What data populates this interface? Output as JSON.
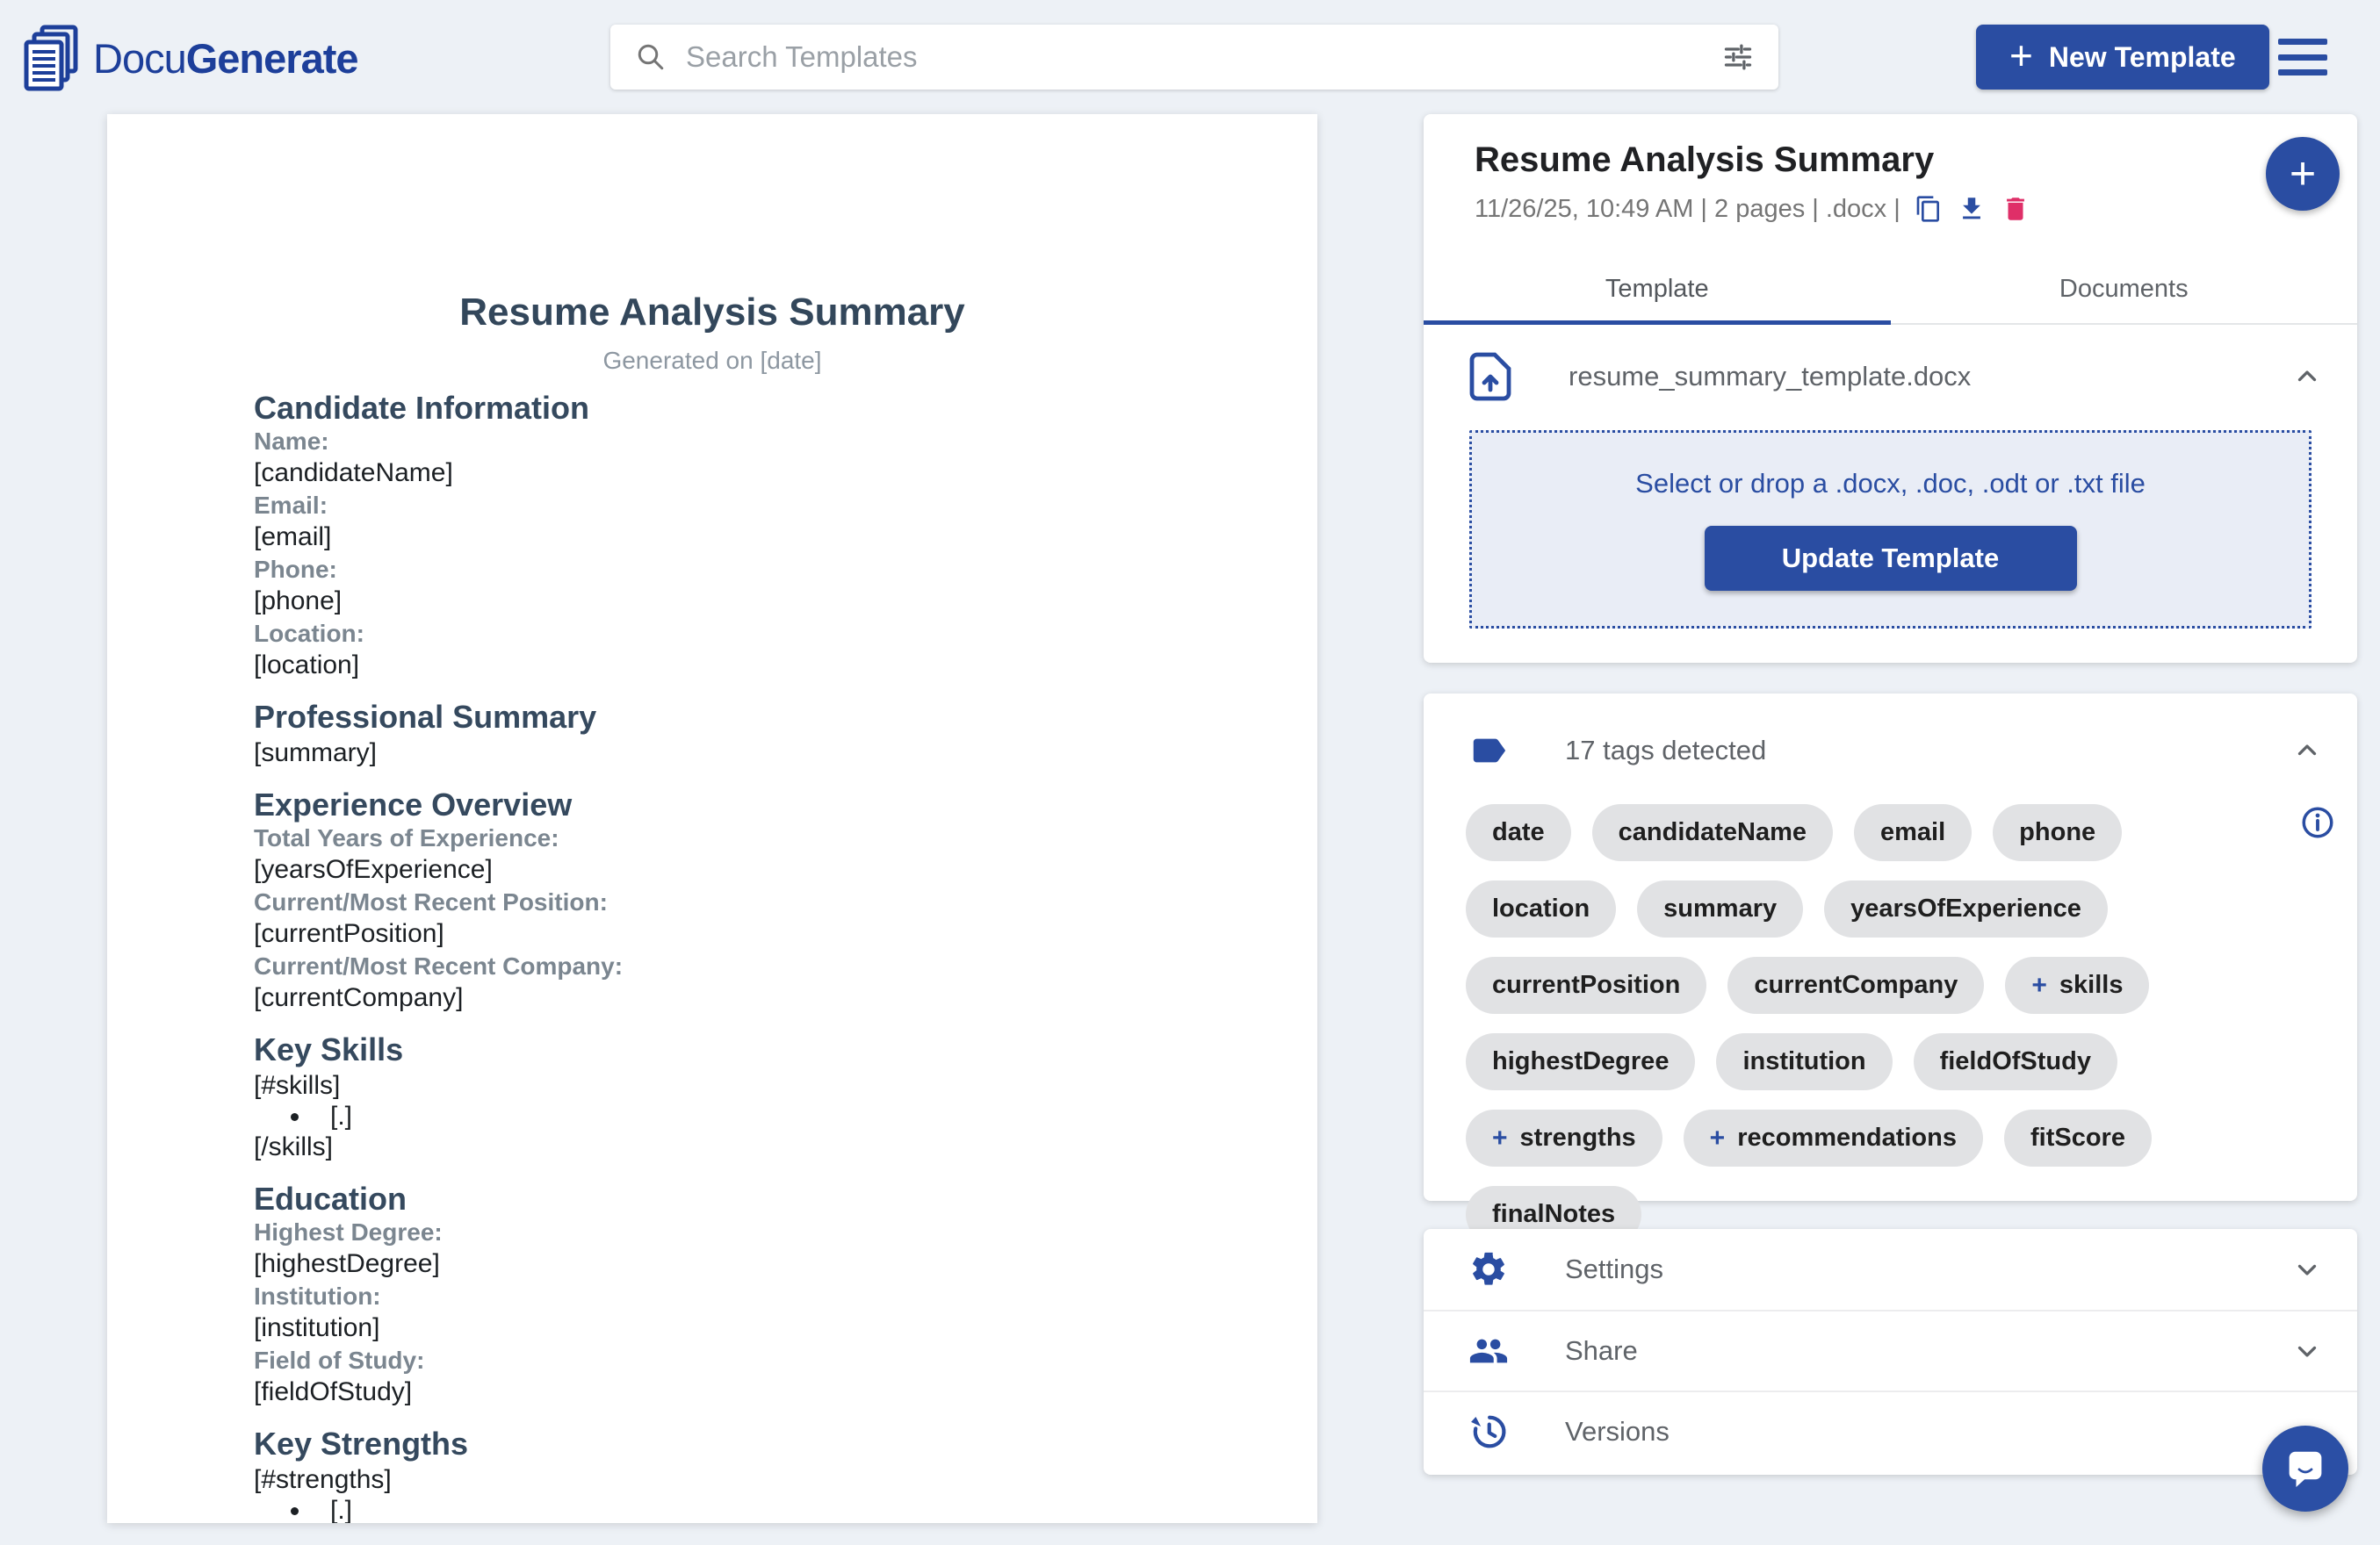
{
  "colors": {
    "accent": "#2a4da2",
    "danger": "#df2f68"
  },
  "topbar": {
    "brand_regular": "Docu",
    "brand_bold": "Generate",
    "search_placeholder": "Search Templates",
    "new_template_plus": "+",
    "new_template_label": "New Template"
  },
  "panel": {
    "title": "Resume Analysis Summary",
    "meta": "11/26/25, 10:49 AM | 2 pages | .docx |",
    "fab_plus": "+",
    "tabs": [
      {
        "label": "Template"
      },
      {
        "label": "Documents"
      }
    ],
    "template_file": "resume_summary_template.docx",
    "dropzone": {
      "hint": "Select or drop a .docx, .doc, .odt or .txt file",
      "button": "Update Template"
    },
    "tags": {
      "header": "17 tags detected",
      "plus_glyph": "+",
      "items": [
        {
          "label": "date"
        },
        {
          "label": "candidateName"
        },
        {
          "label": "email"
        },
        {
          "label": "phone"
        },
        {
          "label": "location"
        },
        {
          "label": "summary"
        },
        {
          "label": "yearsOfExperience"
        },
        {
          "label": "currentPosition"
        },
        {
          "label": "currentCompany"
        },
        {
          "label": "skills",
          "plus": true
        },
        {
          "label": "highestDegree"
        },
        {
          "label": "institution"
        },
        {
          "label": "fieldOfStudy"
        },
        {
          "label": "strengths",
          "plus": true
        },
        {
          "label": "recommendations",
          "plus": true
        },
        {
          "label": "fitScore"
        },
        {
          "label": "finalNotes"
        }
      ]
    },
    "accordions": [
      {
        "label": "Settings"
      },
      {
        "label": "Share"
      },
      {
        "label": "Versions"
      }
    ]
  },
  "document": {
    "title": "Resume Analysis Summary",
    "subtitle": "Generated on [date]",
    "blocks": [
      {
        "type": "heading",
        "text": "Candidate Information"
      },
      {
        "type": "field",
        "label": "Name:",
        "value": "[candidateName]"
      },
      {
        "type": "field",
        "label": "Email:",
        "value": "[email]"
      },
      {
        "type": "field",
        "label": "Phone:",
        "value": "[phone]"
      },
      {
        "type": "field",
        "label": "Location:",
        "value": "[location]"
      },
      {
        "type": "heading",
        "text": "Professional Summary"
      },
      {
        "type": "text",
        "text": "[summary]"
      },
      {
        "type": "heading",
        "text": "Experience Overview"
      },
      {
        "type": "field",
        "label": "Total Years of Experience:",
        "value": "[yearsOfExperience]"
      },
      {
        "type": "field",
        "label": "Current/Most Recent Position:",
        "value": "[currentPosition]"
      },
      {
        "type": "field",
        "label": "Current/Most Recent Company:",
        "value": "[currentCompany]"
      },
      {
        "type": "heading",
        "text": "Key Skills"
      },
      {
        "type": "text",
        "text": "[#skills]"
      },
      {
        "type": "bullet",
        "text": "[.]"
      },
      {
        "type": "text",
        "text": "[/skills]"
      },
      {
        "type": "heading",
        "text": "Education"
      },
      {
        "type": "field",
        "label": "Highest Degree:",
        "value": "[highestDegree]"
      },
      {
        "type": "field",
        "label": "Institution:",
        "value": "[institution]"
      },
      {
        "type": "field",
        "label": "Field of Study:",
        "value": "[fieldOfStudy]"
      },
      {
        "type": "heading",
        "text": "Key Strengths"
      },
      {
        "type": "text",
        "text": "[#strengths]"
      },
      {
        "type": "bullet",
        "text": "[.]"
      }
    ]
  }
}
